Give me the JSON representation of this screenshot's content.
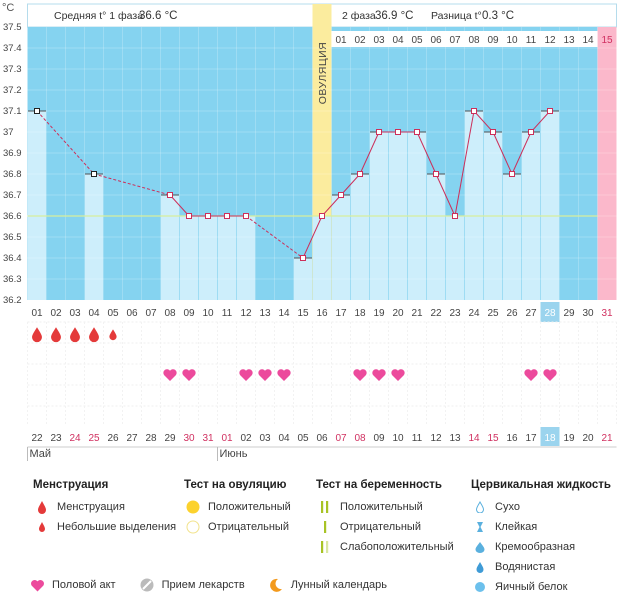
{
  "header": {
    "y_unit": "°C",
    "phase1_label": "Средняя t° 1 фаза",
    "phase1_value": "36.6 °C",
    "phase2_label": "2 фаза",
    "phase2_value": "36.9 °C",
    "diff_label": "Разница t°",
    "diff_value": "0.3 °C",
    "ovulation_text": "ОВУЛЯЦИЯ"
  },
  "colors": {
    "period_bg": "#85d3f0",
    "bar": "#cdeefb",
    "line": "#cc2f5a",
    "coverline": "#d7ee9c",
    "ovulation": "#fbec9e",
    "pink_col": "#fbb8cb",
    "heart": "#ec4a9c",
    "drop": "#e43a3a",
    "highlight": "#9bd4ee",
    "red_text": "#d03060"
  },
  "chart_data": {
    "type": "bar",
    "title": "",
    "ylabel": "°C",
    "ylim": [
      36.2,
      37.5
    ],
    "yticks": [
      "36.2",
      "36.3",
      "36.4",
      "36.5",
      "36.6",
      "36.7",
      "36.8",
      "36.9",
      "37",
      "37.1",
      "37.2",
      "37.3",
      "37.4",
      "37.5"
    ],
    "coverline": 36.6,
    "categories": [
      "01",
      "02",
      "03",
      "04",
      "05",
      "06",
      "07",
      "08",
      "09",
      "10",
      "11",
      "12",
      "13",
      "14",
      "15",
      "16",
      "17",
      "18",
      "19",
      "20",
      "21",
      "22",
      "23",
      "24",
      "25",
      "26",
      "27",
      "28",
      "29",
      "30",
      "31"
    ],
    "values": [
      37.1,
      null,
      null,
      36.8,
      null,
      null,
      null,
      36.7,
      36.6,
      36.6,
      36.6,
      36.6,
      null,
      null,
      36.4,
      36.6,
      36.7,
      36.8,
      37.0,
      37.0,
      37.0,
      36.8,
      36.6,
      37.1,
      37.0,
      36.8,
      37.0,
      37.1,
      null,
      null,
      null
    ],
    "phase2_days": [
      "01",
      "02",
      "03",
      "04",
      "05",
      "06",
      "07",
      "08",
      "09",
      "10",
      "11",
      "12",
      "13",
      "14",
      "15"
    ],
    "ovulation_day": 16,
    "highlight_day": 28,
    "pink_day": 31,
    "dates": [
      "22",
      "23",
      "24",
      "25",
      "26",
      "27",
      "28",
      "29",
      "30",
      "31",
      "01",
      "02",
      "03",
      "04",
      "05",
      "06",
      "07",
      "08",
      "09",
      "10",
      "11",
      "12",
      "13",
      "14",
      "15",
      "16",
      "17",
      "18",
      "19",
      "20",
      "21"
    ],
    "red_dates": [
      3,
      4,
      9,
      10,
      11,
      17,
      18,
      24,
      25,
      31
    ],
    "months": [
      {
        "name": "Май",
        "day": 1
      },
      {
        "name": "Июнь",
        "day": 11
      }
    ],
    "menstruation": [
      1,
      2,
      3,
      4
    ],
    "spotting": [
      5
    ],
    "intercourse": [
      8,
      9,
      12,
      13,
      14,
      18,
      19,
      20,
      27,
      28
    ]
  },
  "legend": {
    "menstruation": {
      "title": "Менструация",
      "items": [
        "Менструация",
        "Небольшие выделения"
      ]
    },
    "ovulation_test": {
      "title": "Тест на овуляцию",
      "items": [
        "Положительный",
        "Отрицательный"
      ]
    },
    "pregnancy_test": {
      "title": "Тест на беременность",
      "items": [
        "Положительный",
        "Отрицательный",
        "Слабоположительный"
      ]
    },
    "cervical": {
      "title": "Цервикальная жидкость",
      "items": [
        "Сухо",
        "Клейкая",
        "Кремообразная",
        "Водянистая",
        "Яичный белок"
      ]
    },
    "bottom": [
      "Половой акт",
      "Прием лекарств",
      "Лунный календарь"
    ]
  }
}
